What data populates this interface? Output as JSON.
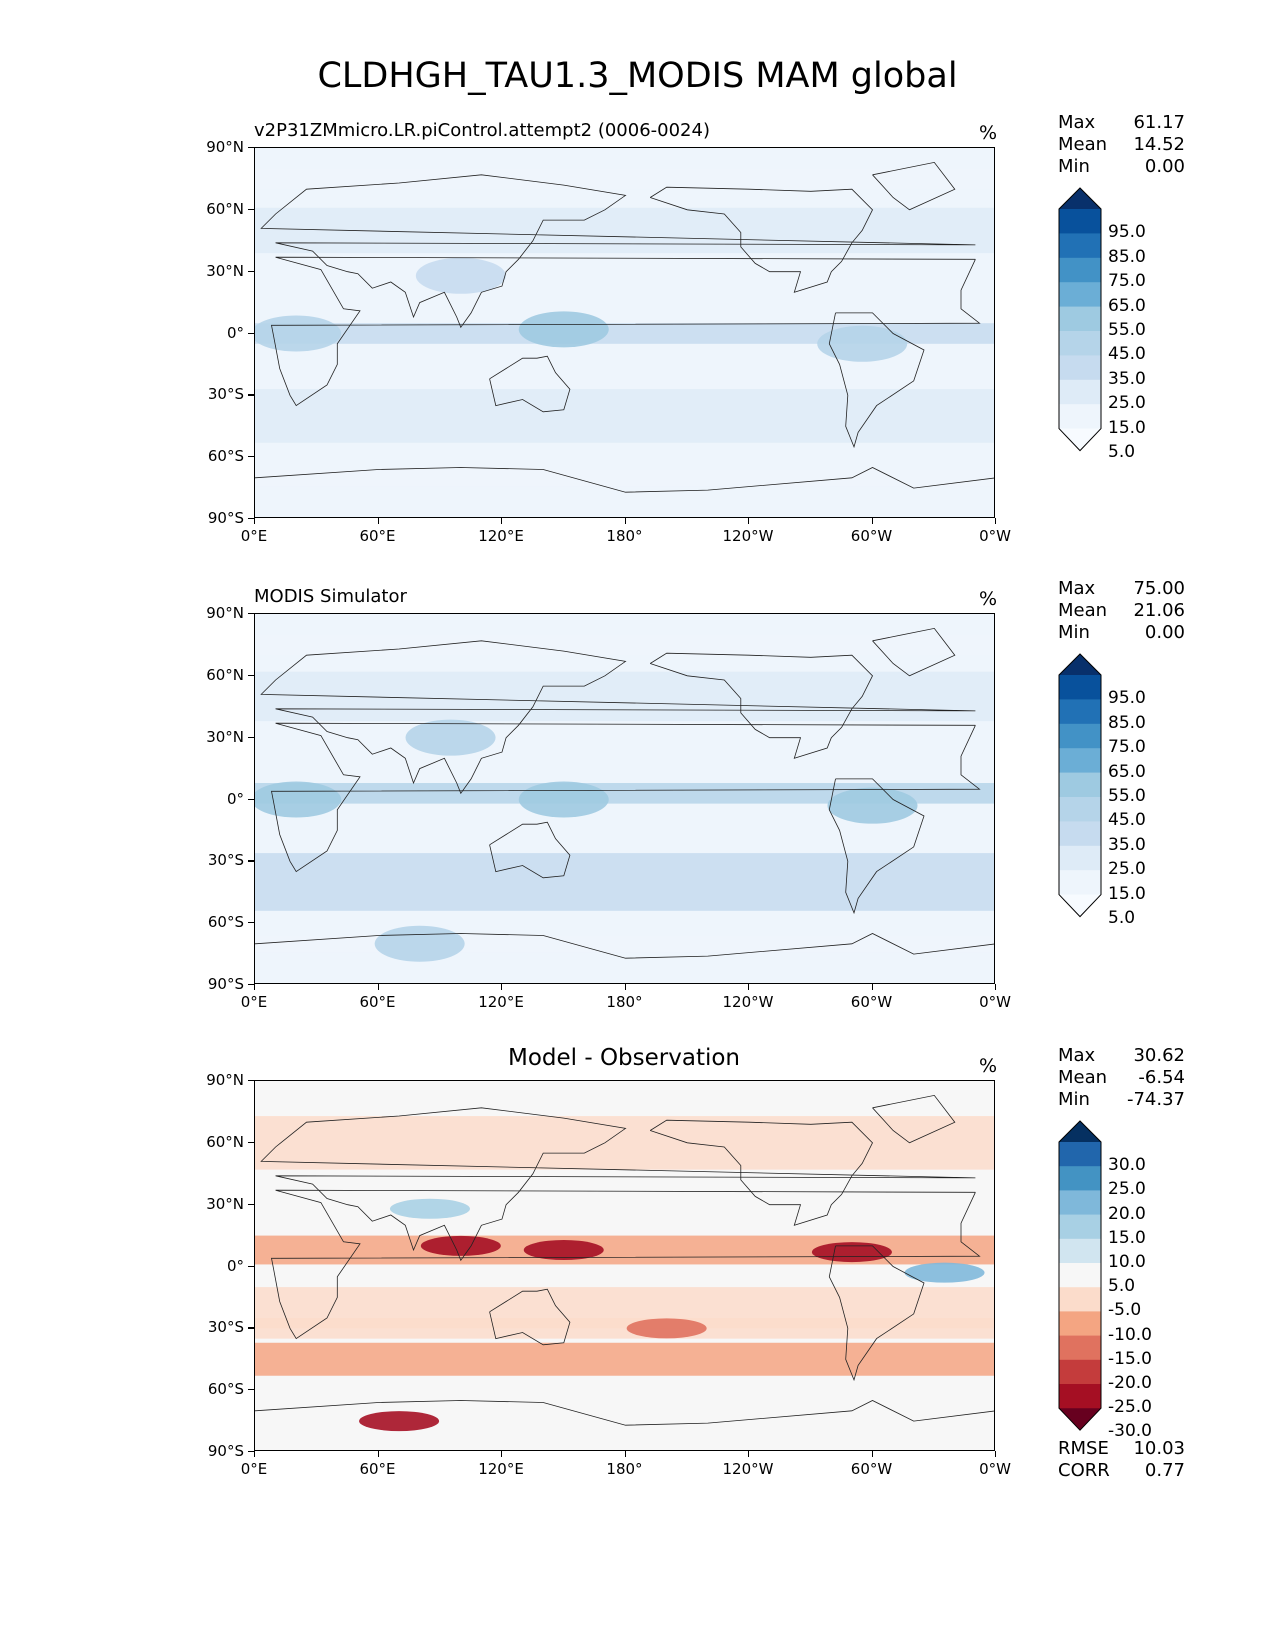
{
  "title": "CLDHGH_TAU1.3_MODIS MAM global",
  "axes": {
    "y_ticks": [
      "90°N",
      "60°N",
      "30°N",
      "0°",
      "30°S",
      "60°S",
      "90°S"
    ],
    "x_ticks": [
      "0°E",
      "60°E",
      "120°E",
      "180°",
      "120°W",
      "60°W",
      "0°W"
    ]
  },
  "panels": [
    {
      "title": "v2P31ZMmicro.LR.piControl.attempt2 (0006-0024)",
      "unit": "%",
      "stats": [
        {
          "label": "Max",
          "value": "61.17"
        },
        {
          "label": "Mean",
          "value": "14.52"
        },
        {
          "label": "Min",
          "value": "0.00"
        }
      ],
      "colorbar": {
        "labels": [
          "95.0",
          "85.0",
          "75.0",
          "65.0",
          "55.0",
          "45.0",
          "35.0",
          "25.0",
          "15.0",
          "5.0"
        ],
        "colors": [
          "#08306b",
          "#08519c",
          "#2171b5",
          "#4292c6",
          "#6baed6",
          "#9ecae1",
          "#b5d4e9",
          "#c6dbef",
          "#deebf7",
          "#eef5fc",
          "#f7fbff"
        ]
      }
    },
    {
      "title": "MODIS Simulator",
      "unit": "%",
      "stats": [
        {
          "label": "Max",
          "value": "75.00"
        },
        {
          "label": "Mean",
          "value": "21.06"
        },
        {
          "label": "Min",
          "value": "0.00"
        }
      ],
      "colorbar": {
        "labels": [
          "95.0",
          "85.0",
          "75.0",
          "65.0",
          "55.0",
          "45.0",
          "35.0",
          "25.0",
          "15.0",
          "5.0"
        ],
        "colors": [
          "#08306b",
          "#08519c",
          "#2171b5",
          "#4292c6",
          "#6baed6",
          "#9ecae1",
          "#b5d4e9",
          "#c6dbef",
          "#deebf7",
          "#eef5fc",
          "#f7fbff"
        ]
      }
    },
    {
      "title": "Model - Observation",
      "unit": "%",
      "stats": [
        {
          "label": "Max",
          "value": "30.62"
        },
        {
          "label": "Mean",
          "value": "-6.54"
        },
        {
          "label": "Min",
          "value": "-74.37"
        }
      ],
      "footer_stats": [
        {
          "label": "RMSE",
          "value": "10.03"
        },
        {
          "label": "CORR",
          "value": "0.77"
        }
      ],
      "colorbar": {
        "labels": [
          "30.0",
          "25.0",
          "20.0",
          "15.0",
          "10.0",
          "5.0",
          "-5.0",
          "-10.0",
          "-15.0",
          "-20.0",
          "-25.0",
          "-30.0"
        ],
        "colors": [
          "#053061",
          "#2166ac",
          "#4393c3",
          "#7fb8da",
          "#a8d0e4",
          "#d1e5f0",
          "#f7f7f7",
          "#fbdccb",
          "#f4a582",
          "#e0725f",
          "#c43c3c",
          "#a50f23",
          "#67001f"
        ]
      }
    }
  ],
  "chart_data": [
    {
      "type": "heatmap",
      "title": "v2P31ZMmicro.LR.piControl.attempt2 (0006-0024)",
      "variable": "CLDHGH_TAU1.3_MODIS",
      "season": "MAM",
      "unit": "%",
      "xlim": [
        0,
        360
      ],
      "ylim": [
        -90,
        90
      ],
      "stats": {
        "max": 61.17,
        "mean": 14.52,
        "min": 0.0
      },
      "levels": [
        5,
        15,
        25,
        35,
        45,
        55,
        65,
        75,
        85,
        95
      ],
      "colormap": "Blues",
      "features": [
        {
          "lon": 150,
          "lat": 2,
          "value": 45
        },
        {
          "lon": 20,
          "lat": 0,
          "value": 40
        },
        {
          "lon": 295,
          "lat": -5,
          "value": 38
        },
        {
          "lon": 100,
          "lat": 28,
          "value": 30
        }
      ]
    },
    {
      "type": "heatmap",
      "title": "MODIS Simulator",
      "unit": "%",
      "xlim": [
        0,
        360
      ],
      "ylim": [
        -90,
        90
      ],
      "stats": {
        "max": 75.0,
        "mean": 21.06,
        "min": 0.0
      },
      "levels": [
        5,
        15,
        25,
        35,
        45,
        55,
        65,
        75,
        85,
        95
      ],
      "colormap": "Blues",
      "features": [
        {
          "lon": 150,
          "lat": 0,
          "value": 50
        },
        {
          "lon": 20,
          "lat": 0,
          "value": 48
        },
        {
          "lon": 300,
          "lat": -3,
          "value": 50
        },
        {
          "lon": 95,
          "lat": 30,
          "value": 40
        },
        {
          "lon": 80,
          "lat": -70,
          "value": 40
        }
      ]
    },
    {
      "type": "heatmap",
      "title": "Model - Observation",
      "unit": "%",
      "xlim": [
        0,
        360
      ],
      "ylim": [
        -90,
        90
      ],
      "stats": {
        "max": 30.62,
        "mean": -6.54,
        "min": -74.37,
        "rmse": 10.03,
        "corr": 0.77
      },
      "levels": [
        -30,
        -25,
        -20,
        -15,
        -10,
        -5,
        5,
        10,
        15,
        20,
        25,
        30
      ],
      "colormap": "RdBu",
      "features": [
        {
          "lon": 150,
          "lat": 8,
          "value": -30
        },
        {
          "lon": 290,
          "lat": 7,
          "value": -30
        },
        {
          "lon": 100,
          "lat": 10,
          "value": -28
        },
        {
          "lon": 70,
          "lat": -75,
          "value": -30
        },
        {
          "lon": 200,
          "lat": -30,
          "value": -18
        },
        {
          "lon": 335,
          "lat": -3,
          "value": 15
        },
        {
          "lon": 85,
          "lat": 28,
          "value": 10
        }
      ]
    }
  ]
}
